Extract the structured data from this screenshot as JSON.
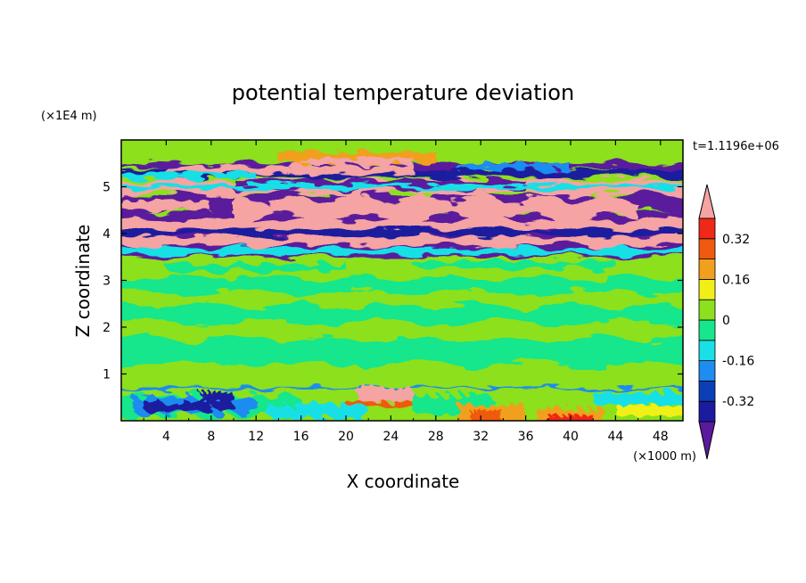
{
  "chart_data": {
    "type": "heatmap",
    "title": "potential temperature deviation",
    "xlabel": "X coordinate",
    "ylabel": "Z coordinate",
    "x_unit": "(×1000 m)",
    "y_unit": "(×1E4 m)",
    "time_label": "t=1.1196e+06",
    "xlim": [
      0,
      50
    ],
    "ylim": [
      0,
      6
    ],
    "x_ticks": [
      4,
      8,
      12,
      16,
      20,
      24,
      28,
      32,
      36,
      40,
      44,
      48
    ],
    "y_ticks": [
      1,
      2,
      3,
      4,
      5
    ],
    "colorbar": {
      "levels": [
        -0.4,
        -0.32,
        -0.24,
        -0.16,
        -0.08,
        0,
        0.08,
        0.16,
        0.24,
        0.32,
        0.4
      ],
      "colors": [
        "#5a1a9c",
        "#1c1a9e",
        "#0a3fb6",
        "#1e8cf0",
        "#18e0e6",
        "#18e68c",
        "#8ce01e",
        "#f0f018",
        "#f0a01e",
        "#f05a10",
        "#f02818",
        "#f5a3a3"
      ],
      "tick_labels": [
        "0.32",
        "0.16",
        "0",
        "-0.16",
        "-0.32"
      ],
      "tick_values": [
        0.32,
        0.16,
        0,
        -0.16,
        -0.32
      ],
      "extend": "both"
    }
  }
}
